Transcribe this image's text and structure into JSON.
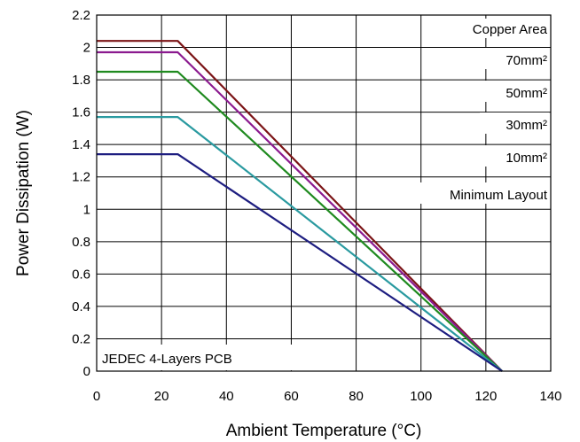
{
  "chart_data": {
    "type": "line",
    "title": "",
    "xlabel": "Ambient Temperature (°C)",
    "ylabel": "Power Dissipation (W)",
    "xlim": [
      0,
      140
    ],
    "ylim": [
      0,
      2.2
    ],
    "xticks": [
      0,
      20,
      40,
      60,
      80,
      100,
      120,
      140
    ],
    "yticks": [
      0,
      0.2,
      0.4,
      0.6,
      0.8,
      1,
      1.2,
      1.4,
      1.6,
      1.8,
      2,
      2.2
    ],
    "grid": true,
    "legend": {
      "title": "Copper  Area",
      "placement": "top-right"
    },
    "annotation": "JEDEC 4-Layers PCB",
    "series": [
      {
        "name": "70mm²",
        "color": "#7b1416",
        "x": [
          0,
          25,
          125
        ],
        "y": [
          2.04,
          2.04,
          0
        ]
      },
      {
        "name": "50mm²",
        "color": "#8b1a8f",
        "x": [
          0,
          25,
          125
        ],
        "y": [
          1.97,
          1.97,
          0
        ]
      },
      {
        "name": "30mm²",
        "color": "#1f8a1f",
        "x": [
          0,
          25,
          125
        ],
        "y": [
          1.85,
          1.85,
          0
        ]
      },
      {
        "name": "10mm²",
        "color": "#2a9aa0",
        "x": [
          0,
          25,
          125
        ],
        "y": [
          1.57,
          1.57,
          0
        ]
      },
      {
        "name": "Minimum Layout",
        "color": "#1d1d80",
        "x": [
          0,
          25,
          125
        ],
        "y": [
          1.34,
          1.34,
          0
        ]
      }
    ]
  }
}
